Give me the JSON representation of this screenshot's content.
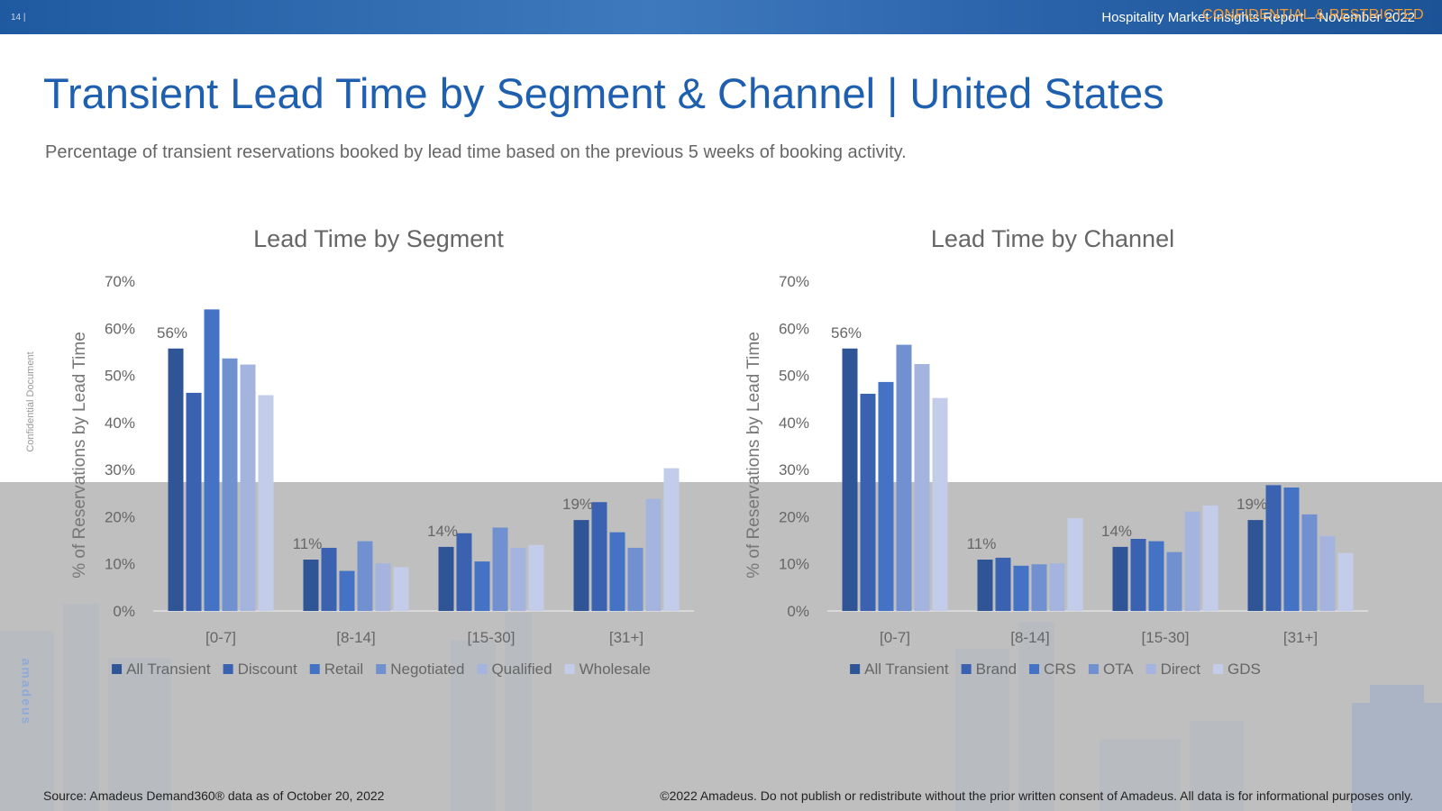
{
  "header": {
    "page_number": "14 |",
    "report_title": "Hospitality Market Insights Report – November 2022",
    "confidential": "CONFIDENTIAL & RESTRICTED"
  },
  "slide": {
    "title": "Transient Lead Time by Segment & Channel | United States",
    "subtitle": "Percentage of transient reservations booked by lead time based on the previous 5 weeks of booking activity."
  },
  "side": {
    "confidential_doc": "Confidential Document",
    "logo": "amadeus"
  },
  "footer": {
    "source": "Source: Amadeus Demand360® data as of October 20, 2022",
    "copyright": "©2022 Amadeus. Do not publish or redistribute without the prior written consent of Amadeus. All data is for informational purposes only."
  },
  "colors": [
    "#2f5597",
    "#3a62b0",
    "#4472c4",
    "#7090d0",
    "#a4b4de",
    "#c3cdea"
  ],
  "chart_data": [
    {
      "type": "bar",
      "title": "Lead Time by Segment",
      "xlabel": "",
      "ylabel": "% of Reservations by Lead Time",
      "ylim": [
        0,
        70
      ],
      "yticks": [
        "0%",
        "10%",
        "20%",
        "30%",
        "40%",
        "50%",
        "60%",
        "70%"
      ],
      "categories": [
        "[0-7]",
        "[8-14]",
        "[15-30]",
        "[31+]"
      ],
      "data_labels": [
        "56%",
        "11%",
        "14%",
        "19%"
      ],
      "legend_position": "bottom",
      "series": [
        {
          "name": "All Transient",
          "values": [
            55.7,
            10.9,
            13.6,
            19.3
          ]
        },
        {
          "name": "Discount",
          "values": [
            46.3,
            13.4,
            16.5,
            23.1
          ]
        },
        {
          "name": "Retail",
          "values": [
            64.0,
            8.5,
            10.5,
            16.7
          ]
        },
        {
          "name": "Negotiated",
          "values": [
            53.6,
            14.8,
            17.7,
            13.4
          ]
        },
        {
          "name": "Qualified",
          "values": [
            52.3,
            10.1,
            13.4,
            23.8
          ]
        },
        {
          "name": "Wholesale",
          "values": [
            45.8,
            9.3,
            14.0,
            30.3
          ]
        }
      ]
    },
    {
      "type": "bar",
      "title": "Lead Time by Channel",
      "xlabel": "",
      "ylabel": "% of Reservations by Lead Time",
      "ylim": [
        0,
        70
      ],
      "yticks": [
        "0%",
        "10%",
        "20%",
        "30%",
        "40%",
        "50%",
        "60%",
        "70%"
      ],
      "categories": [
        "[0-7]",
        "[8-14]",
        "[15-30]",
        "[31+]"
      ],
      "data_labels": [
        "56%",
        "11%",
        "14%",
        "19%"
      ],
      "legend_position": "bottom",
      "series": [
        {
          "name": "All Transient",
          "values": [
            55.7,
            10.9,
            13.6,
            19.3
          ]
        },
        {
          "name": "Brand",
          "values": [
            46.1,
            11.3,
            15.3,
            26.7
          ]
        },
        {
          "name": "CRS",
          "values": [
            48.6,
            9.6,
            14.8,
            26.2
          ]
        },
        {
          "name": "OTA",
          "values": [
            56.5,
            9.9,
            12.5,
            20.5
          ]
        },
        {
          "name": "Direct",
          "values": [
            52.4,
            10.1,
            21.1,
            15.9
          ]
        },
        {
          "name": "GDS",
          "values": [
            45.2,
            19.7,
            22.4,
            12.3
          ]
        }
      ]
    }
  ]
}
